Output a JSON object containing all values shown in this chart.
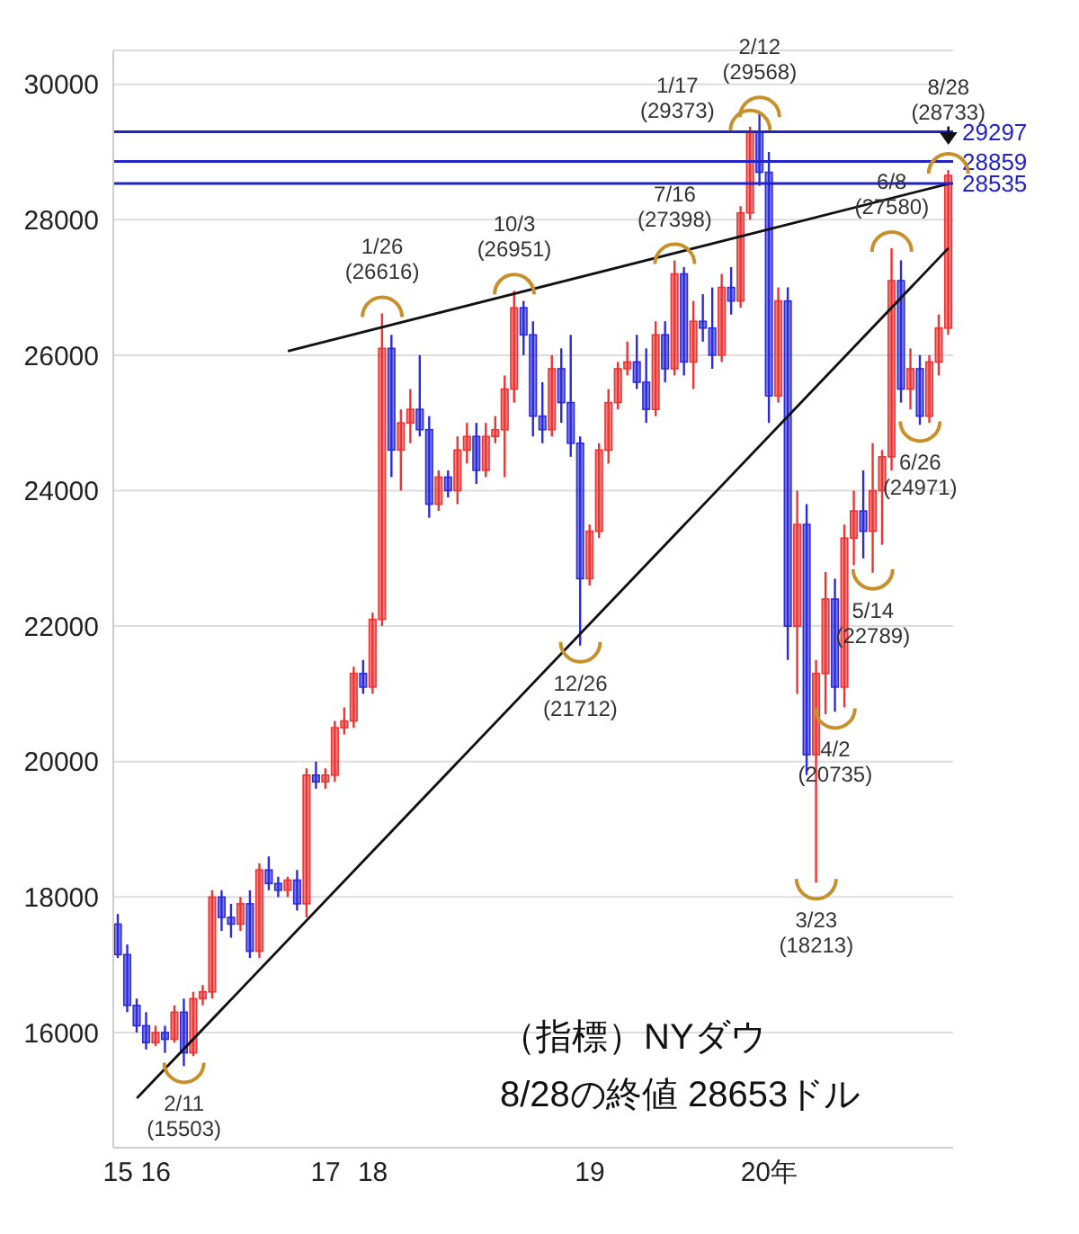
{
  "chart_data": {
    "type": "candlestick",
    "title": "（指標）NYダウ",
    "subtitle": "8/28の終値 28653ドル",
    "categories": [
      "15",
      null,
      null,
      null,
      "16",
      null,
      null,
      null,
      null,
      null,
      null,
      null,
      null,
      null,
      null,
      null,
      null,
      null,
      null,
      null,
      null,
      null,
      "17",
      null,
      null,
      null,
      null,
      "18",
      null,
      null,
      null,
      null,
      null,
      null,
      null,
      null,
      null,
      null,
      null,
      null,
      null,
      null,
      null,
      null,
      null,
      null,
      null,
      null,
      null,
      null,
      "19",
      null,
      null,
      null,
      null,
      null,
      null,
      null,
      null,
      null,
      null,
      null,
      null,
      null,
      null,
      null,
      null,
      null,
      null,
      "20年",
      null,
      null,
      null,
      null,
      null,
      null,
      null,
      null,
      null,
      null,
      null,
      null,
      null,
      null,
      null,
      null,
      null,
      null,
      null
    ],
    "ohlc": [
      [
        17600,
        17750,
        17100,
        17150
      ],
      [
        17150,
        17300,
        16300,
        16400
      ],
      [
        16400,
        16500,
        16000,
        16100
      ],
      [
        16100,
        16300,
        15750,
        15850
      ],
      [
        15850,
        16100,
        15800,
        16000
      ],
      [
        16000,
        16100,
        15700,
        15900
      ],
      [
        15900,
        16400,
        15850,
        16300
      ],
      [
        16300,
        16500,
        15503,
        15700
      ],
      [
        15700,
        16600,
        15650,
        16500
      ],
      [
        16500,
        16700,
        16400,
        16600
      ],
      [
        16600,
        18100,
        16500,
        18000
      ],
      [
        18000,
        18100,
        17500,
        17700
      ],
      [
        17700,
        17900,
        17400,
        17600
      ],
      [
        17600,
        18000,
        17500,
        17900
      ],
      [
        17900,
        18100,
        17100,
        17200
      ],
      [
        17200,
        18500,
        17100,
        18400
      ],
      [
        18400,
        18600,
        18100,
        18200
      ],
      [
        18200,
        18300,
        18000,
        18100
      ],
      [
        18100,
        18300,
        18000,
        18250
      ],
      [
        18250,
        18400,
        17800,
        17900
      ],
      [
        17900,
        19900,
        17700,
        19800
      ],
      [
        19800,
        20000,
        19600,
        19700
      ],
      [
        19700,
        19900,
        19600,
        19800
      ],
      [
        19800,
        20600,
        19700,
        20500
      ],
      [
        20500,
        20800,
        20400,
        20600
      ],
      [
        20600,
        21400,
        20500,
        21300
      ],
      [
        21300,
        21500,
        21000,
        21100
      ],
      [
        21100,
        22200,
        21000,
        22100
      ],
      [
        22100,
        26616,
        22000,
        26100
      ],
      [
        26100,
        26300,
        24200,
        24600
      ],
      [
        24600,
        25200,
        24000,
        25000
      ],
      [
        25000,
        25500,
        24700,
        25200
      ],
      [
        25200,
        26000,
        24800,
        24900
      ],
      [
        24900,
        25100,
        23600,
        23800
      ],
      [
        23800,
        24300,
        23700,
        24200
      ],
      [
        24200,
        24300,
        23900,
        24000
      ],
      [
        24000,
        24800,
        23800,
        24600
      ],
      [
        24600,
        25000,
        24400,
        24800
      ],
      [
        24800,
        25000,
        24100,
        24300
      ],
      [
        24300,
        25000,
        24200,
        24800
      ],
      [
        24800,
        25100,
        24700,
        24900
      ],
      [
        24900,
        25700,
        24200,
        25500
      ],
      [
        25500,
        26951,
        25300,
        26700
      ],
      [
        26700,
        26800,
        26000,
        26300
      ],
      [
        26300,
        26500,
        24800,
        25100
      ],
      [
        25100,
        25600,
        24700,
        24900
      ],
      [
        24900,
        26000,
        24800,
        25800
      ],
      [
        25800,
        26100,
        25000,
        25300
      ],
      [
        25300,
        26300,
        24500,
        24700
      ],
      [
        24700,
        24800,
        21712,
        22700
      ],
      [
        22700,
        23500,
        22600,
        23400
      ],
      [
        23400,
        24700,
        23300,
        24600
      ],
      [
        24600,
        25500,
        24400,
        25300
      ],
      [
        25300,
        25900,
        25200,
        25800
      ],
      [
        25800,
        26200,
        25700,
        25900
      ],
      [
        25900,
        26300,
        25500,
        25600
      ],
      [
        25600,
        26100,
        25000,
        25200
      ],
      [
        25200,
        26500,
        25100,
        26300
      ],
      [
        26300,
        26500,
        25600,
        25800
      ],
      [
        25800,
        27398,
        25700,
        27200
      ],
      [
        27200,
        27300,
        25700,
        25900
      ],
      [
        25900,
        26800,
        25500,
        26500
      ],
      [
        26500,
        26900,
        26200,
        26400
      ],
      [
        26400,
        27000,
        25800,
        26000
      ],
      [
        26000,
        27200,
        25900,
        27000
      ],
      [
        27000,
        27300,
        26600,
        26800
      ],
      [
        26800,
        28200,
        26700,
        28100
      ],
      [
        28100,
        29373,
        28000,
        29300
      ],
      [
        29300,
        29568,
        28500,
        28700
      ],
      [
        28700,
        29000,
        25000,
        25400
      ],
      [
        25400,
        27000,
        25300,
        26800
      ],
      [
        26800,
        27000,
        21500,
        22000
      ],
      [
        22000,
        24000,
        21000,
        23500
      ],
      [
        23500,
        23800,
        19800,
        20100
      ],
      [
        20100,
        21500,
        18213,
        21300
      ],
      [
        21300,
        22800,
        20700,
        22400
      ],
      [
        22400,
        22700,
        20735,
        21100
      ],
      [
        21100,
        23500,
        20800,
        23300
      ],
      [
        23300,
        24000,
        22900,
        23700
      ],
      [
        23700,
        24300,
        23000,
        23400
      ],
      [
        23400,
        24700,
        22789,
        24000
      ],
      [
        24000,
        24600,
        23200,
        24500
      ],
      [
        24500,
        27580,
        24300,
        27100
      ],
      [
        27100,
        27400,
        25300,
        25500
      ],
      [
        25500,
        26100,
        25200,
        25800
      ],
      [
        25800,
        26000,
        24971,
        25100
      ],
      [
        25100,
        26000,
        25000,
        25900
      ],
      [
        25900,
        26600,
        25700,
        26400
      ],
      [
        26400,
        28733,
        26300,
        28653
      ]
    ],
    "colors": [
      "#2b2bdd",
      "#2b2bdd",
      "#2b2bdd",
      "#2b2bdd",
      "#ee3333",
      "#2b2bdd",
      "#ee3333",
      "#2b2bdd",
      "#ee3333",
      "#ee3333",
      "#ee3333",
      "#2b2bdd",
      "#2b2bdd",
      "#ee3333",
      "#2b2bdd",
      "#ee3333",
      "#2b2bdd",
      "#2b2bdd",
      "#ee3333",
      "#2b2bdd",
      "#ee3333",
      "#2b2bdd",
      "#ee3333",
      "#ee3333",
      "#ee3333",
      "#ee3333",
      "#2b2bdd",
      "#ee3333",
      "#ee3333",
      "#2b2bdd",
      "#ee3333",
      "#ee3333",
      "#2b2bdd",
      "#2b2bdd",
      "#ee3333",
      "#2b2bdd",
      "#ee3333",
      "#ee3333",
      "#2b2bdd",
      "#ee3333",
      "#ee3333",
      "#ee3333",
      "#ee3333",
      "#2b2bdd",
      "#2b2bdd",
      "#2b2bdd",
      "#ee3333",
      "#2b2bdd",
      "#2b2bdd",
      "#2b2bdd",
      "#ee3333",
      "#ee3333",
      "#ee3333",
      "#ee3333",
      "#ee3333",
      "#2b2bdd",
      "#2b2bdd",
      "#ee3333",
      "#2b2bdd",
      "#ee3333",
      "#2b2bdd",
      "#ee3333",
      "#2b2bdd",
      "#2b2bdd",
      "#ee3333",
      "#2b2bdd",
      "#ee3333",
      "#ee3333",
      "#2b2bdd",
      "#2b2bdd",
      "#ee3333",
      "#2b2bdd",
      "#ee3333",
      "#2b2bdd",
      "#ee3333",
      "#ee3333",
      "#2b2bdd",
      "#ee3333",
      "#ee3333",
      "#2b2bdd",
      "#ee3333",
      "#ee3333",
      "#ee3333",
      "#2b2bdd",
      "#ee3333",
      "#2b2bdd",
      "#ee3333",
      "#ee3333",
      "#ee3333"
    ],
    "series": [
      {
        "type": "line",
        "color": "#111111",
        "values": [
          null,
          null,
          15030,
          null,
          null,
          null,
          null,
          null,
          null,
          null,
          null,
          null,
          null,
          null,
          null,
          null,
          null,
          null,
          null,
          null,
          null,
          null,
          null,
          null,
          null,
          null,
          null,
          null,
          null,
          null,
          null,
          null,
          null,
          null,
          null,
          null,
          null,
          null,
          null,
          null,
          null,
          null,
          null,
          null,
          null,
          null,
          null,
          null,
          null,
          null,
          null,
          null,
          null,
          null,
          null,
          null,
          null,
          null,
          null,
          null,
          null,
          null,
          null,
          null,
          null,
          null,
          null,
          null,
          null,
          null,
          null,
          null,
          null,
          null,
          null,
          null,
          null,
          null,
          null,
          null,
          null,
          null,
          null,
          null,
          null,
          null,
          null,
          null,
          27580
        ]
      },
      {
        "type": "line",
        "color": "#111111",
        "values": [
          null,
          null,
          null,
          null,
          null,
          null,
          null,
          null,
          null,
          null,
          null,
          null,
          null,
          null,
          null,
          null,
          null,
          null,
          26060,
          null,
          null,
          null,
          null,
          null,
          null,
          null,
          null,
          null,
          null,
          null,
          null,
          null,
          null,
          null,
          null,
          null,
          null,
          null,
          null,
          null,
          null,
          null,
          null,
          null,
          null,
          null,
          null,
          null,
          null,
          null,
          null,
          null,
          null,
          null,
          null,
          null,
          null,
          null,
          null,
          null,
          null,
          null,
          null,
          null,
          null,
          null,
          null,
          null,
          null,
          null,
          null,
          null,
          null,
          null,
          null,
          null,
          null,
          null,
          null,
          null,
          null,
          null,
          null,
          null,
          null,
          null,
          null,
          null,
          28530
        ]
      }
    ],
    "ylim": [
      14300,
      30500
    ],
    "yticks": [
      16000,
      18000,
      20000,
      22000,
      24000,
      26000,
      28000,
      30000
    ],
    "grid": "y",
    "ref_lines": [
      {
        "axis": "y",
        "value": 29297,
        "label": "29297",
        "color": "#2222cc"
      },
      {
        "axis": "y",
        "value": 28859,
        "label": "28859",
        "color": "#2222cc"
      },
      {
        "axis": "y",
        "value": 28535,
        "label": "28535",
        "color": "#2222cc"
      }
    ],
    "annotations": [
      {
        "text": "2/11\n(15503)",
        "y": 15503
      },
      {
        "text": "1/26\n(26616)",
        "y": 26616
      },
      {
        "text": "10/3\n(26951)",
        "y": 26951
      },
      {
        "text": "12/26\n(21712)",
        "y": 21712
      },
      {
        "text": "7/16\n(27398)",
        "y": 27398
      },
      {
        "text": "1/17\n(29373)",
        "y": 29373
      },
      {
        "text": "2/12\n(29568)",
        "y": 29568
      },
      {
        "text": "3/23\n(18213)",
        "y": 18213
      },
      {
        "text": "4/2\n(20735)",
        "y": 20735
      },
      {
        "text": "5/14\n(22789)",
        "y": 22789
      },
      {
        "text": "6/8\n(27580)",
        "y": 27580
      },
      {
        "text": "6/26\n(24971)",
        "y": 24971
      },
      {
        "text": "8/28\n(28733)",
        "y": 28733
      }
    ],
    "legend": false
  }
}
